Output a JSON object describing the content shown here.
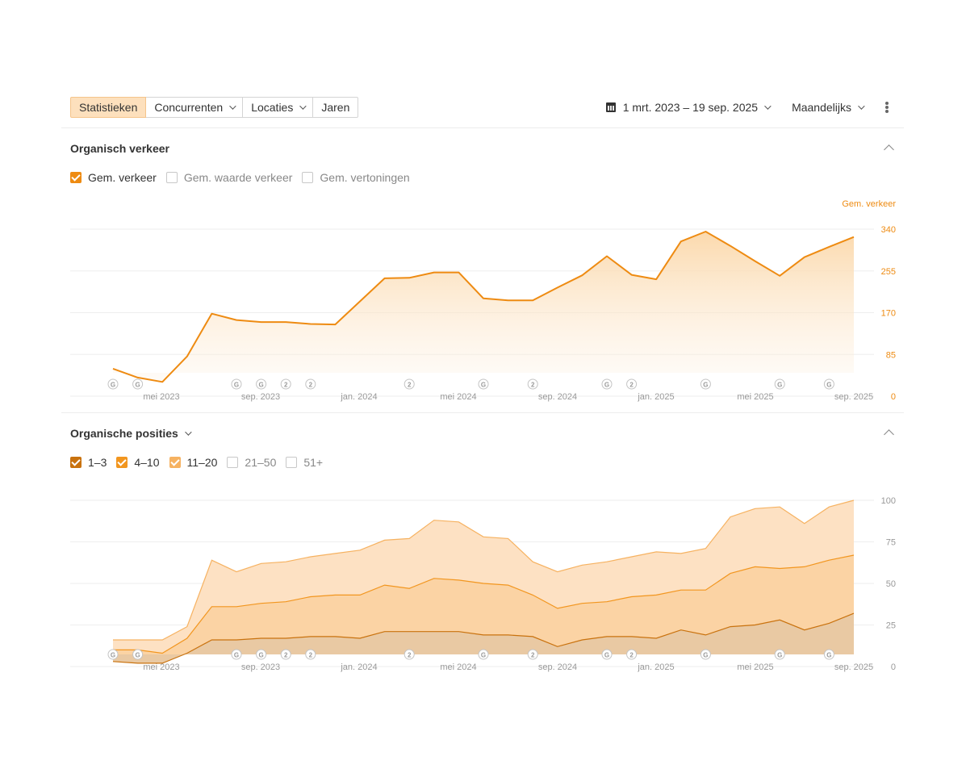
{
  "toolbar": {
    "tabs": [
      {
        "label": "Statistieken",
        "active": true,
        "dropdown": false
      },
      {
        "label": "Concurrenten",
        "active": false,
        "dropdown": true
      },
      {
        "label": "Locaties",
        "active": false,
        "dropdown": true
      },
      {
        "label": "Jaren",
        "active": false,
        "dropdown": false
      }
    ],
    "date_range": "1 mrt. 2023 – 19 sep. 2025",
    "period": "Maandelijks"
  },
  "traffic": {
    "title": "Organisch verkeer",
    "legend": [
      {
        "label": "Gem. verkeer",
        "checked": true,
        "color": "#ee8b12"
      },
      {
        "label": "Gem. waarde verkeer",
        "checked": false
      },
      {
        "label": "Gem. vertoningen",
        "checked": false
      }
    ]
  },
  "positions": {
    "title": "Organische posities",
    "legend": [
      {
        "label": "1–3",
        "checked": true,
        "color": "#c9720e"
      },
      {
        "label": "4–10",
        "checked": true,
        "color": "#f2961f"
      },
      {
        "label": "11–20",
        "checked": true,
        "color": "#f6b261"
      },
      {
        "label": "21–50",
        "checked": false
      },
      {
        "label": "51+",
        "checked": false
      }
    ]
  },
  "chart_data": [
    {
      "type": "area",
      "name": "Organisch verkeer",
      "axis_title": "Gem. verkeer",
      "x_tick_labels": [
        "mei 2023",
        "sep. 2023",
        "jan. 2024",
        "mei 2024",
        "sep. 2024",
        "jan. 2025",
        "mei 2025",
        "sep. 2025"
      ],
      "y_ticks": [
        0,
        85,
        170,
        255,
        340
      ],
      "ylim": [
        0,
        340
      ],
      "y_axis_side": "right",
      "grid": true,
      "series": [
        {
          "name": "Gem. verkeer",
          "color": "#ee8b12",
          "values": [
            56,
            38,
            29,
            81,
            168,
            155,
            151,
            151,
            147,
            146,
            193,
            240,
            241,
            252,
            252,
            199,
            195,
            195,
            221,
            246,
            285,
            247,
            238,
            315,
            335,
            306,
            275,
            245,
            283,
            304,
            324
          ]
        }
      ],
      "markers": [
        "G",
        "G",
        "",
        "",
        "",
        "G",
        "G",
        "2",
        "2",
        "",
        "",
        "",
        "2",
        "",
        "",
        "G",
        "",
        "2",
        "",
        "",
        "G",
        "2",
        "",
        "",
        "G",
        "",
        "",
        "G",
        "",
        "G",
        ""
      ]
    },
    {
      "type": "area",
      "name": "Organische posities",
      "x_tick_labels": [
        "mei 2023",
        "sep. 2023",
        "jan. 2024",
        "mei 2024",
        "sep. 2024",
        "jan. 2025",
        "mei 2025",
        "sep. 2025"
      ],
      "y_ticks": [
        0,
        25,
        50,
        75,
        100
      ],
      "ylim": [
        0,
        100
      ],
      "y_axis_side": "right",
      "grid": true,
      "stacked": true,
      "series": [
        {
          "name": "1–3",
          "color": "#c9720e",
          "values": [
            3,
            2,
            2,
            8,
            16,
            16,
            17,
            17,
            18,
            18,
            17,
            21,
            21,
            21,
            21,
            19,
            19,
            18,
            12,
            16,
            18,
            18,
            17,
            22,
            19,
            24,
            25,
            28,
            22,
            26,
            32
          ]
        },
        {
          "name": "4–10",
          "color": "#f2961f",
          "values": [
            7,
            8,
            6,
            9,
            20,
            20,
            21,
            22,
            24,
            25,
            26,
            28,
            26,
            32,
            31,
            31,
            30,
            25,
            23,
            22,
            21,
            24,
            26,
            24,
            27,
            32,
            35,
            31,
            38,
            38,
            35
          ]
        },
        {
          "name": "11–20",
          "color": "#f6b261",
          "values": [
            6,
            6,
            8,
            7,
            28,
            21,
            24,
            24,
            24,
            25,
            27,
            27,
            30,
            35,
            35,
            28,
            28,
            20,
            22,
            23,
            24,
            24,
            26,
            22,
            25,
            34,
            35,
            37,
            26,
            32,
            33
          ]
        }
      ],
      "markers": [
        "G",
        "G",
        "",
        "",
        "",
        "G",
        "G",
        "2",
        "2",
        "",
        "",
        "",
        "2",
        "",
        "",
        "G",
        "",
        "2",
        "",
        "",
        "G",
        "2",
        "",
        "",
        "G",
        "",
        "",
        "G",
        "",
        "G",
        ""
      ]
    }
  ]
}
